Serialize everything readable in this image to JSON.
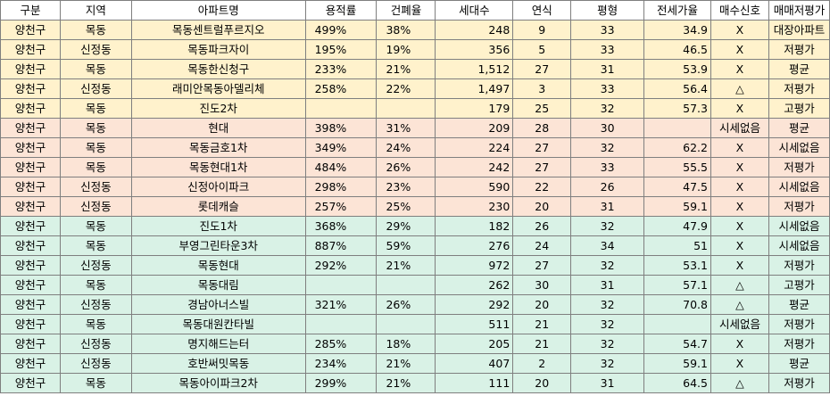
{
  "headers": [
    "구분",
    "지역",
    "아파트명",
    "용적률",
    "건폐율",
    "세대수",
    "연식",
    "평형",
    "전세가율",
    "매수신호",
    "매매저평가"
  ],
  "rows": [
    {
      "group": "yellow",
      "cells": [
        "양천구",
        "목동",
        "목동센트럴푸르지오",
        "499%",
        "38%",
        "248",
        "9",
        "33",
        "34.9",
        "X",
        "대장아파트"
      ]
    },
    {
      "group": "yellow",
      "cells": [
        "양천구",
        "신정동",
        "목동파크자이",
        "195%",
        "19%",
        "356",
        "5",
        "33",
        "46.5",
        "X",
        "저평가"
      ]
    },
    {
      "group": "yellow",
      "cells": [
        "양천구",
        "목동",
        "목동한신청구",
        "233%",
        "21%",
        "1,512",
        "27",
        "31",
        "53.9",
        "X",
        "평균"
      ]
    },
    {
      "group": "yellow",
      "cells": [
        "양천구",
        "신정동",
        "래미안목동아델리체",
        "258%",
        "22%",
        "1,497",
        "3",
        "33",
        "56.4",
        "△",
        "저평가"
      ]
    },
    {
      "group": "yellow",
      "cells": [
        "양천구",
        "목동",
        "진도2차",
        "",
        "",
        "179",
        "25",
        "32",
        "57.3",
        "X",
        "고평가"
      ]
    },
    {
      "group": "peach",
      "cells": [
        "양천구",
        "목동",
        "현대",
        "398%",
        "31%",
        "209",
        "28",
        "30",
        "",
        "시세없음",
        "평균"
      ]
    },
    {
      "group": "peach",
      "cells": [
        "양천구",
        "목동",
        "목동금호1차",
        "349%",
        "24%",
        "224",
        "27",
        "32",
        "62.2",
        "X",
        "시세없음"
      ]
    },
    {
      "group": "peach",
      "cells": [
        "양천구",
        "목동",
        "목동현대1차",
        "484%",
        "26%",
        "242",
        "27",
        "33",
        "55.5",
        "X",
        "저평가"
      ]
    },
    {
      "group": "peach",
      "cells": [
        "양천구",
        "신정동",
        "신정아이파크",
        "298%",
        "23%",
        "590",
        "22",
        "26",
        "47.5",
        "X",
        "시세없음"
      ]
    },
    {
      "group": "peach",
      "cells": [
        "양천구",
        "신정동",
        "롯데캐슬",
        "257%",
        "25%",
        "230",
        "20",
        "31",
        "59.1",
        "X",
        "저평가"
      ]
    },
    {
      "group": "green",
      "cells": [
        "양천구",
        "목동",
        "진도1차",
        "368%",
        "29%",
        "182",
        "26",
        "32",
        "47.9",
        "X",
        "시세없음"
      ]
    },
    {
      "group": "green",
      "cells": [
        "양천구",
        "목동",
        "부영그린타운3차",
        "887%",
        "59%",
        "276",
        "24",
        "34",
        "51",
        "X",
        "시세없음"
      ]
    },
    {
      "group": "green",
      "cells": [
        "양천구",
        "신정동",
        "목동현대",
        "292%",
        "21%",
        "972",
        "27",
        "32",
        "53.1",
        "X",
        "저평가"
      ]
    },
    {
      "group": "green",
      "cells": [
        "양천구",
        "목동",
        "목동대림",
        "",
        "",
        "262",
        "30",
        "31",
        "57.1",
        "△",
        "고평가"
      ]
    },
    {
      "group": "green",
      "cells": [
        "양천구",
        "신정동",
        "경남아너스빌",
        "321%",
        "26%",
        "292",
        "20",
        "32",
        "70.8",
        "△",
        "평균"
      ]
    },
    {
      "group": "green",
      "cells": [
        "양천구",
        "목동",
        "목동대원칸타빌",
        "",
        "",
        "511",
        "21",
        "32",
        "",
        "시세없음",
        "저평가"
      ]
    },
    {
      "group": "green",
      "cells": [
        "양천구",
        "신정동",
        "명지해드는터",
        "285%",
        "18%",
        "205",
        "21",
        "32",
        "54.7",
        "X",
        "저평가"
      ]
    },
    {
      "group": "green",
      "cells": [
        "양천구",
        "신정동",
        "호반써밋목동",
        "234%",
        "21%",
        "407",
        "2",
        "32",
        "59.1",
        "X",
        "평균"
      ]
    },
    {
      "group": "green",
      "cells": [
        "양천구",
        "목동",
        "목동아이파크2차",
        "299%",
        "21%",
        "111",
        "20",
        "31",
        "64.5",
        "△",
        "저평가"
      ]
    }
  ],
  "colors": {
    "yellow": "#fff2cc",
    "peach": "#fce4d6",
    "green": "#d9f2e6",
    "border": "#7f7f7f"
  }
}
